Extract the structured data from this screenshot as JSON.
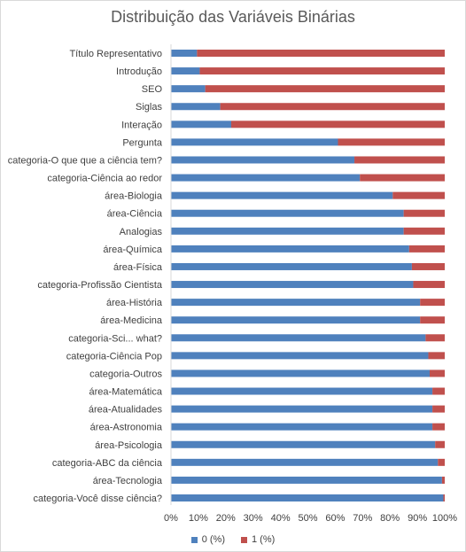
{
  "chart_data": {
    "type": "bar",
    "orientation": "horizontal",
    "stacked": "percent",
    "title": "Distribuição das Variáveis Binárias",
    "categories": [
      "Título Representativo",
      "Introdução",
      "SEO",
      "Siglas",
      "Interação",
      "Pergunta",
      "categoria-O que que a ciência tem?",
      "categoria-Ciência ao redor",
      "área-Biologia",
      "área-Ciência",
      "Analogias",
      "área-Química",
      "área-Física",
      "categoria-Profissão Cientista",
      "área-História",
      "área-Medicina",
      "categoria-Sci... what?",
      "categoria-Ciência Pop",
      "categoria-Outros",
      "área-Matemática",
      "área-Atualidades",
      "área-Astronomia",
      "área-Psicologia",
      "categoria-ABC da ciência",
      "área-Tecnologia",
      "categoria-Você disse ciência?"
    ],
    "series": [
      {
        "name": "0 (%)",
        "color": "#4f81bd",
        "values": [
          9.5,
          10.5,
          12.5,
          18,
          22,
          61,
          67,
          69,
          81,
          85,
          85,
          87,
          88,
          88.5,
          91,
          91,
          93,
          94,
          94.5,
          95.5,
          95.5,
          95.5,
          96.5,
          97.5,
          99,
          99.5
        ]
      },
      {
        "name": "1 (%)",
        "color": "#c0504d",
        "values": [
          90.5,
          89.5,
          87.5,
          82,
          78,
          39,
          33,
          31,
          19,
          15,
          15,
          13,
          12,
          11.5,
          9,
          9,
          7,
          6,
          5.5,
          4.5,
          4.5,
          4.5,
          3.5,
          2.5,
          1,
          0.5
        ]
      }
    ],
    "xlim": [
      0,
      100
    ],
    "x_ticks": [
      "0%",
      "10%",
      "20%",
      "30%",
      "40%",
      "50%",
      "60%",
      "70%",
      "80%",
      "90%",
      "100%"
    ],
    "legend_position": "bottom",
    "grid": false
  }
}
